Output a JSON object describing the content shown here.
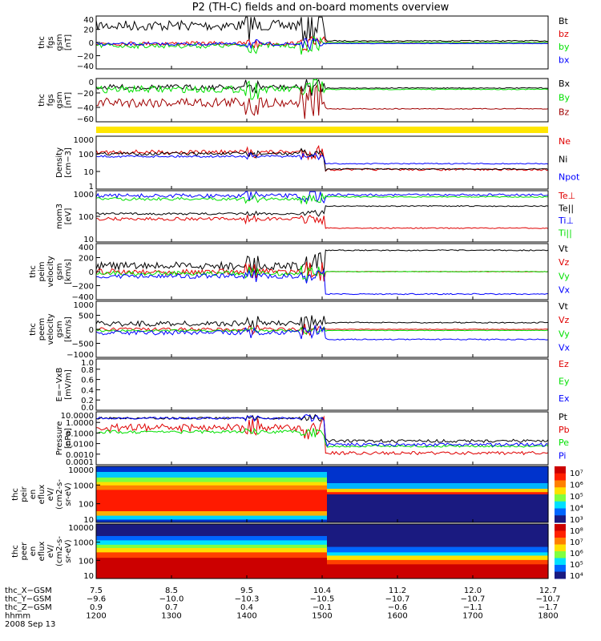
{
  "title": "P2 (TH-C) fields and on-board moments overview",
  "colors": {
    "black": "#000000",
    "red": "#e00000",
    "green": "#00e000",
    "blue": "#0000ff",
    "darkred": "#a00000",
    "yellow": "#ffe600"
  },
  "chart_data": [
    {
      "type": "line",
      "ylabel": [
        "thc",
        "fgs",
        "gsm",
        "[nT]"
      ],
      "yticks": [
        "40",
        "20",
        "0",
        "−20",
        "−40"
      ],
      "ylim": [
        -40,
        40
      ],
      "series": [
        {
          "name": "Bt",
          "color": "#000000"
        },
        {
          "name": "bz",
          "color": "#e00000"
        },
        {
          "name": "by",
          "color": "#00e000"
        },
        {
          "name": "bx",
          "color": "#0000ff"
        }
      ]
    },
    {
      "type": "line",
      "ylabel": [
        "thc",
        "fgs",
        "gsm",
        "[nT]"
      ],
      "yticks": [
        "0",
        "−20",
        "−40",
        "−60"
      ],
      "ylim": [
        -70,
        10
      ],
      "series": [
        {
          "name": "Bx",
          "color": "#000000"
        },
        {
          "name": "By",
          "color": "#00e000"
        },
        {
          "name": "Bz",
          "color": "#a00000"
        }
      ]
    },
    {
      "type": "line",
      "ylabel": [
        "Density",
        "[cm−3]"
      ],
      "yticks": [
        "1000",
        "100",
        "10",
        "1"
      ],
      "scale": "log",
      "ylim": [
        1,
        1000
      ],
      "series": [
        {
          "name": "Ne",
          "color": "#e00000"
        },
        {
          "name": "Ni",
          "color": "#000000"
        },
        {
          "name": "Npot",
          "color": "#0000ff"
        }
      ]
    },
    {
      "type": "line",
      "ylabel": [
        "mom3",
        "[eV]"
      ],
      "yticks": [
        "1000",
        "100",
        "10"
      ],
      "scale": "log",
      "ylim": [
        5,
        1000
      ],
      "series": [
        {
          "name": "Te⊥",
          "color": "#e00000"
        },
        {
          "name": "Te||",
          "color": "#000000"
        },
        {
          "name": "Ti⊥",
          "color": "#0000ff"
        },
        {
          "name": "Ti||",
          "color": "#00e000"
        }
      ]
    },
    {
      "type": "line",
      "ylabel": [
        "thc",
        "peim",
        "velocity",
        "gsm",
        "[km/s]"
      ],
      "yticks": [
        "400",
        "200",
        "0",
        "−200",
        "−400"
      ],
      "ylim": [
        -400,
        400
      ],
      "series": [
        {
          "name": "Vt",
          "color": "#000000"
        },
        {
          "name": "Vz",
          "color": "#e00000"
        },
        {
          "name": "Vy",
          "color": "#00e000"
        },
        {
          "name": "Vx",
          "color": "#0000ff"
        }
      ]
    },
    {
      "type": "line",
      "ylabel": [
        "thc",
        "peem",
        "velocity",
        "gsm",
        "[km/s]"
      ],
      "yticks": [
        "1000",
        "500",
        "0",
        "−500",
        "−1000"
      ],
      "ylim": [
        -1000,
        1000
      ],
      "series": [
        {
          "name": "Vt",
          "color": "#000000"
        },
        {
          "name": "Vz",
          "color": "#e00000"
        },
        {
          "name": "Vy",
          "color": "#00e000"
        },
        {
          "name": "Vx",
          "color": "#0000ff"
        }
      ]
    },
    {
      "type": "line",
      "ylabel": [
        "E=−VxB",
        "[mV/m]"
      ],
      "yticks": [
        "1.0",
        "0.8",
        "0.6",
        "0.4",
        "0.2",
        "0.0"
      ],
      "ylim": [
        0,
        1
      ],
      "series": [
        {
          "name": "Ez",
          "color": "#e00000"
        },
        {
          "name": "Ey",
          "color": "#00e000"
        },
        {
          "name": "Ex",
          "color": "#0000ff"
        }
      ]
    },
    {
      "type": "line",
      "ylabel": [
        "Pressure",
        "[nPa]"
      ],
      "yticks": [
        "10.0000",
        "1.0000",
        "0.1000",
        "0.0100",
        "0.0010",
        "0.0001"
      ],
      "scale": "log",
      "ylim": [
        0.0001,
        10
      ],
      "series": [
        {
          "name": "Pt",
          "color": "#000000"
        },
        {
          "name": "Pb",
          "color": "#e00000"
        },
        {
          "name": "Pe",
          "color": "#00e000"
        },
        {
          "name": "Pi",
          "color": "#0000ff"
        }
      ]
    },
    {
      "type": "heatmap",
      "ylabel": [
        "thc",
        "peir",
        "en",
        "eflux",
        "eV/",
        "(cm2-s-",
        "sr-eV)"
      ],
      "yticks": [
        "10000",
        "1000",
        "100",
        "10"
      ],
      "colorbar": [
        "10⁷",
        "10⁶",
        "10⁵",
        "10⁴",
        "10³"
      ]
    },
    {
      "type": "heatmap",
      "ylabel": [
        "thc",
        "peer",
        "en",
        "eflux",
        "eV/",
        "(cm2-s-",
        "sr-eV)"
      ],
      "yticks": [
        "10000",
        "1000",
        "100",
        "10"
      ],
      "colorbar": [
        "10⁸",
        "10⁷",
        "10⁶",
        "10⁵",
        "10⁴"
      ]
    }
  ],
  "x_axis": {
    "row_labels": [
      "thc_X−GSM",
      "thc_Y−GSM",
      "thc_Z−GSM",
      "hhmm",
      "2008 Sep 13"
    ],
    "columns": [
      [
        "7.5",
        "−9.6",
        "0.9",
        "1200"
      ],
      [
        "8.5",
        "−10.0",
        "0.7",
        "1300"
      ],
      [
        "9.5",
        "−10.3",
        "0.4",
        "1400"
      ],
      [
        "10.4",
        "−10.5",
        "−0.1",
        "1500"
      ],
      [
        "11.2",
        "−10.7",
        "−0.6",
        "1600"
      ],
      [
        "12.0",
        "−10.7",
        "−1.1",
        "1700"
      ],
      [
        "12.7",
        "−10.7",
        "−1.7",
        "1800"
      ]
    ]
  }
}
